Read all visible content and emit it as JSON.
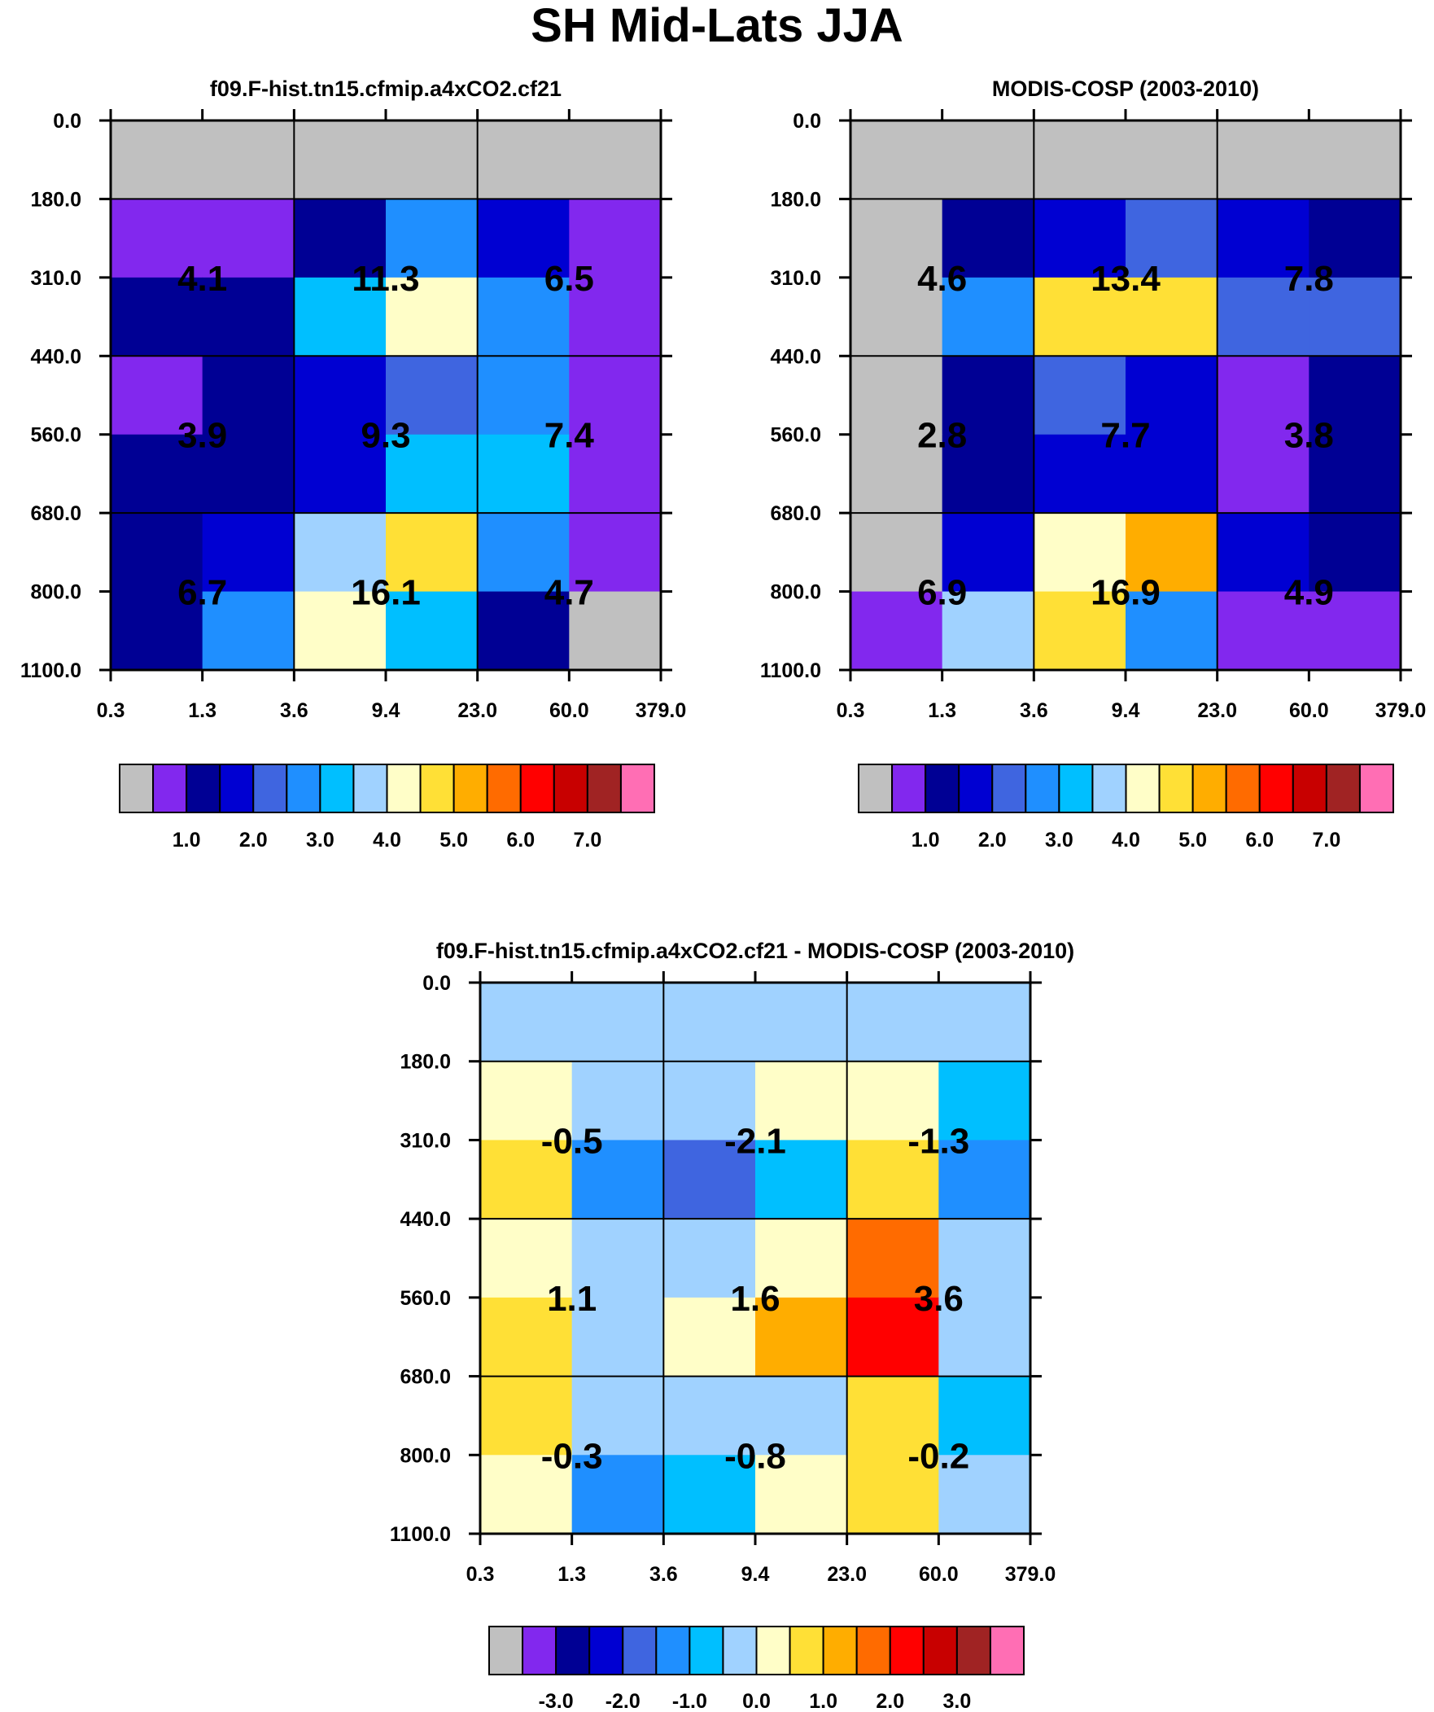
{
  "title": "SH Mid-Lats JJA",
  "palette": [
    "#c0c0c0",
    "#8228ee",
    "#000094",
    "#0000d2",
    "#3f65e0",
    "#1f8fff",
    "#00bfff",
    "#a0d2ff",
    "#fffec8",
    "#ffe036",
    "#ffad00",
    "#ff6b00",
    "#ff0000",
    "#c80000",
    "#a02323",
    "#ff6eb4"
  ],
  "chart_data": [
    {
      "type": "heatmap",
      "title": "f09.F-hist.tn15.cfmip.a4xCO2.cf21",
      "x_ticks": [
        "0.3",
        "1.3",
        "3.6",
        "9.4",
        "23.0",
        "60.0",
        "379.0"
      ],
      "y_ticks": [
        "0.0",
        "180.0",
        "310.0",
        "440.0",
        "560.0",
        "680.0",
        "800.0",
        "1100.0"
      ],
      "grid": true,
      "cell_colors": [
        [
          0,
          0,
          0,
          0,
          0,
          0
        ],
        [
          1,
          1,
          2,
          5,
          3,
          1
        ],
        [
          2,
          2,
          6,
          8,
          5,
          1
        ],
        [
          1,
          2,
          3,
          4,
          5,
          1
        ],
        [
          2,
          2,
          3,
          6,
          6,
          1
        ],
        [
          2,
          3,
          7,
          9,
          5,
          1
        ],
        [
          2,
          5,
          8,
          6,
          2,
          0
        ]
      ],
      "annotations": [
        "4.1",
        "11.3",
        "6.5",
        "3.9",
        "9.3",
        "7.4",
        "6.7",
        "16.1",
        "4.7"
      ],
      "colorbar_labels": [
        "1.0",
        "2.0",
        "3.0",
        "4.0",
        "5.0",
        "6.0",
        "7.0"
      ]
    },
    {
      "type": "heatmap",
      "title": "MODIS-COSP (2003-2010)",
      "x_ticks": [
        "0.3",
        "1.3",
        "3.6",
        "9.4",
        "23.0",
        "60.0",
        "379.0"
      ],
      "y_ticks": [
        "0.0",
        "180.0",
        "310.0",
        "440.0",
        "560.0",
        "680.0",
        "800.0",
        "1100.0"
      ],
      "grid": true,
      "cell_colors": [
        [
          0,
          0,
          0,
          0,
          0,
          0
        ],
        [
          0,
          2,
          3,
          4,
          3,
          2
        ],
        [
          0,
          5,
          9,
          9,
          4,
          4
        ],
        [
          0,
          2,
          4,
          3,
          1,
          2
        ],
        [
          0,
          2,
          3,
          3,
          1,
          2
        ],
        [
          0,
          3,
          8,
          10,
          3,
          2
        ],
        [
          1,
          7,
          9,
          5,
          1,
          1
        ]
      ],
      "annotations": [
        "4.6",
        "13.4",
        "7.8",
        "2.8",
        "7.7",
        "3.8",
        "6.9",
        "16.9",
        "4.9"
      ],
      "colorbar_labels": [
        "1.0",
        "2.0",
        "3.0",
        "4.0",
        "5.0",
        "6.0",
        "7.0"
      ]
    },
    {
      "type": "heatmap",
      "title": "f09.F-hist.tn15.cfmip.a4xCO2.cf21 - MODIS-COSP (2003-2010)",
      "x_ticks": [
        "0.3",
        "1.3",
        "3.6",
        "9.4",
        "23.0",
        "60.0",
        "379.0"
      ],
      "y_ticks": [
        "0.0",
        "180.0",
        "310.0",
        "440.0",
        "560.0",
        "680.0",
        "800.0",
        "1100.0"
      ],
      "grid": true,
      "cell_colors": [
        [
          7,
          7,
          7,
          7,
          7,
          7
        ],
        [
          8,
          7,
          7,
          8,
          8,
          6
        ],
        [
          9,
          5,
          4,
          6,
          9,
          5
        ],
        [
          8,
          7,
          7,
          8,
          11,
          7
        ],
        [
          9,
          7,
          8,
          10,
          12,
          7
        ],
        [
          9,
          7,
          7,
          7,
          9,
          6
        ],
        [
          8,
          5,
          6,
          8,
          9,
          7
        ]
      ],
      "annotations": [
        "-0.5",
        "-2.1",
        "-1.3",
        "1.1",
        "1.6",
        "3.6",
        "-0.3",
        "-0.8",
        "-0.2"
      ],
      "colorbar_labels": [
        "-3.0",
        "-2.0",
        "-1.0",
        "0.0",
        "1.0",
        "2.0",
        "3.0"
      ]
    }
  ]
}
